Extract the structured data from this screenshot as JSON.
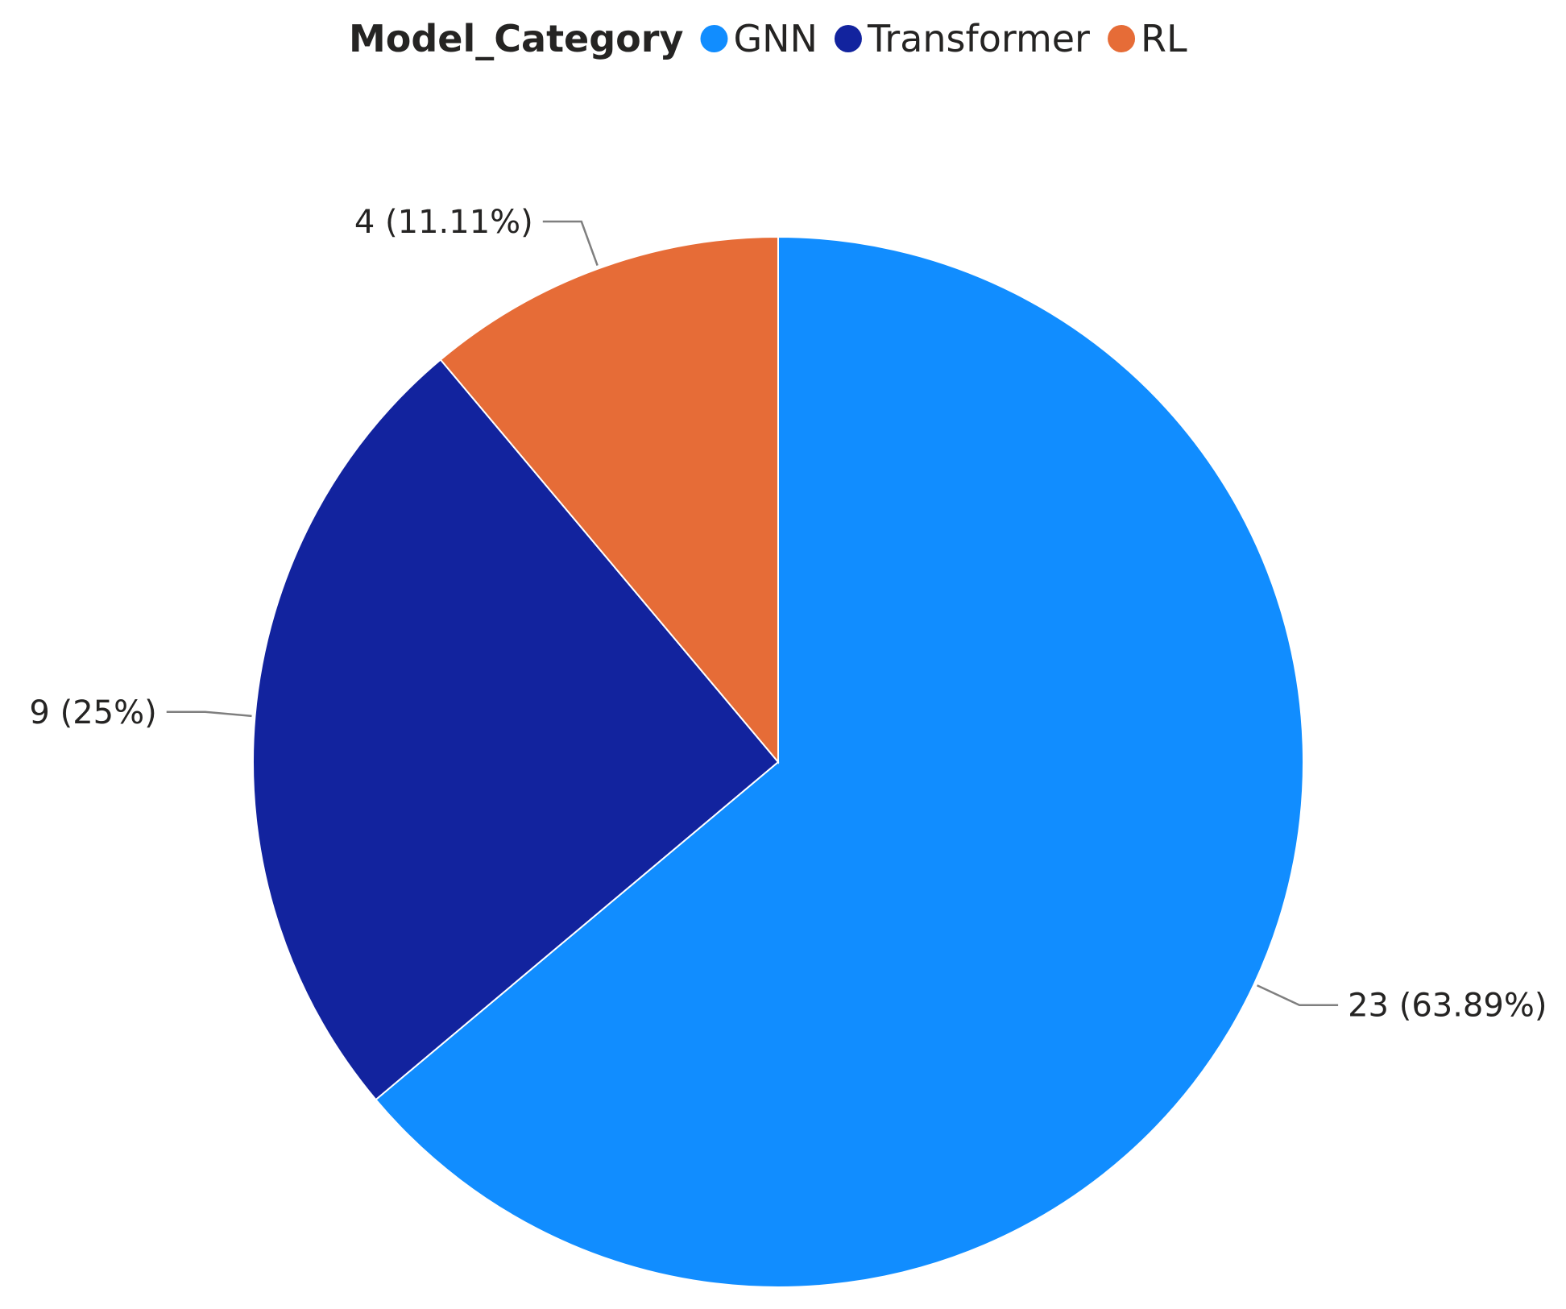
{
  "chart_data": {
    "type": "pie",
    "legend_title": "Model_Category",
    "legend_position": "top",
    "start_angle_deg": 0,
    "direction": "clockwise",
    "slices": [
      {
        "label": "GNN",
        "value": 23,
        "data_label": "23 (63.89%)",
        "color": "#118DFF"
      },
      {
        "label": "Transformer",
        "value": 9,
        "data_label": "9 (25%)",
        "color": "#12239E"
      },
      {
        "label": "RL",
        "value": 4,
        "data_label": "4 (11.11%)",
        "color": "#E66C37"
      }
    ]
  }
}
